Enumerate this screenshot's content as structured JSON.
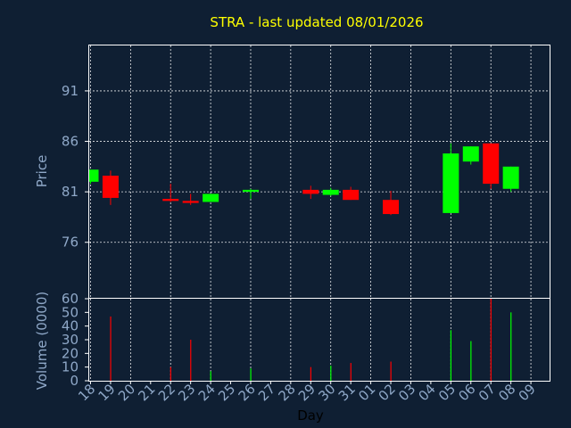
{
  "chart_data": {
    "type": "candlestick",
    "title": "STRA - last updated 08/01/2026",
    "xlabel": "Day",
    "price_axis": {
      "label": "Price",
      "ticks": [
        76,
        81,
        86,
        91
      ],
      "range": [
        70.5,
        95.5
      ]
    },
    "volume_axis": {
      "label": "Volume (0000)",
      "ticks": [
        0,
        10,
        20,
        30,
        40,
        50,
        60
      ],
      "range": [
        0,
        60
      ]
    },
    "grid": true,
    "colors": {
      "up": "#00ff00",
      "down": "#ff0000",
      "background": "#0f1f33",
      "title": "#ffff00",
      "axis_text": "#8fa8c8"
    },
    "days": [
      "18",
      "19",
      "20",
      "21",
      "22",
      "23",
      "24",
      "25",
      "26",
      "27",
      "28",
      "29",
      "30",
      "31",
      "01",
      "02",
      "03",
      "04",
      "05",
      "06",
      "07",
      "08",
      "09"
    ],
    "candles": [
      {
        "i": 0,
        "open": 82.0,
        "close": 83.2,
        "high": 83.2,
        "low": 81.8,
        "volume": 0
      },
      {
        "i": 1,
        "open": 82.6,
        "close": 80.4,
        "high": 83.1,
        "low": 79.7,
        "volume": 47
      },
      {
        "i": 4,
        "open": 80.3,
        "close": 80.1,
        "high": 81.8,
        "low": 80.0,
        "volume": 10
      },
      {
        "i": 5,
        "open": 80.1,
        "close": 79.9,
        "high": 80.8,
        "low": 79.7,
        "volume": 30
      },
      {
        "i": 6,
        "open": 80.0,
        "close": 80.8,
        "high": 80.8,
        "low": 80.0,
        "volume": 7
      },
      {
        "i": 8,
        "open": 81.0,
        "close": 81.2,
        "high": 81.3,
        "low": 80.3,
        "volume": 9
      },
      {
        "i": 11,
        "open": 81.2,
        "close": 80.8,
        "high": 81.6,
        "low": 80.3,
        "volume": 10
      },
      {
        "i": 12,
        "open": 80.7,
        "close": 81.2,
        "high": 81.4,
        "low": 80.6,
        "volume": 11
      },
      {
        "i": 13,
        "open": 81.2,
        "close": 80.2,
        "high": 81.5,
        "low": 80.2,
        "volume": 13
      },
      {
        "i": 15,
        "open": 80.2,
        "close": 78.8,
        "high": 81.1,
        "low": 78.7,
        "volume": 14
      },
      {
        "i": 18,
        "open": 78.9,
        "close": 84.8,
        "high": 85.8,
        "low": 78.9,
        "volume": 37
      },
      {
        "i": 19,
        "open": 84.0,
        "close": 85.5,
        "high": 85.5,
        "low": 83.7,
        "volume": 29
      },
      {
        "i": 20,
        "open": 85.8,
        "close": 81.8,
        "high": 85.8,
        "low": 81.3,
        "volume": 60
      },
      {
        "i": 21,
        "open": 81.3,
        "close": 83.5,
        "high": 83.5,
        "low": 81.0,
        "volume": 50
      }
    ]
  }
}
